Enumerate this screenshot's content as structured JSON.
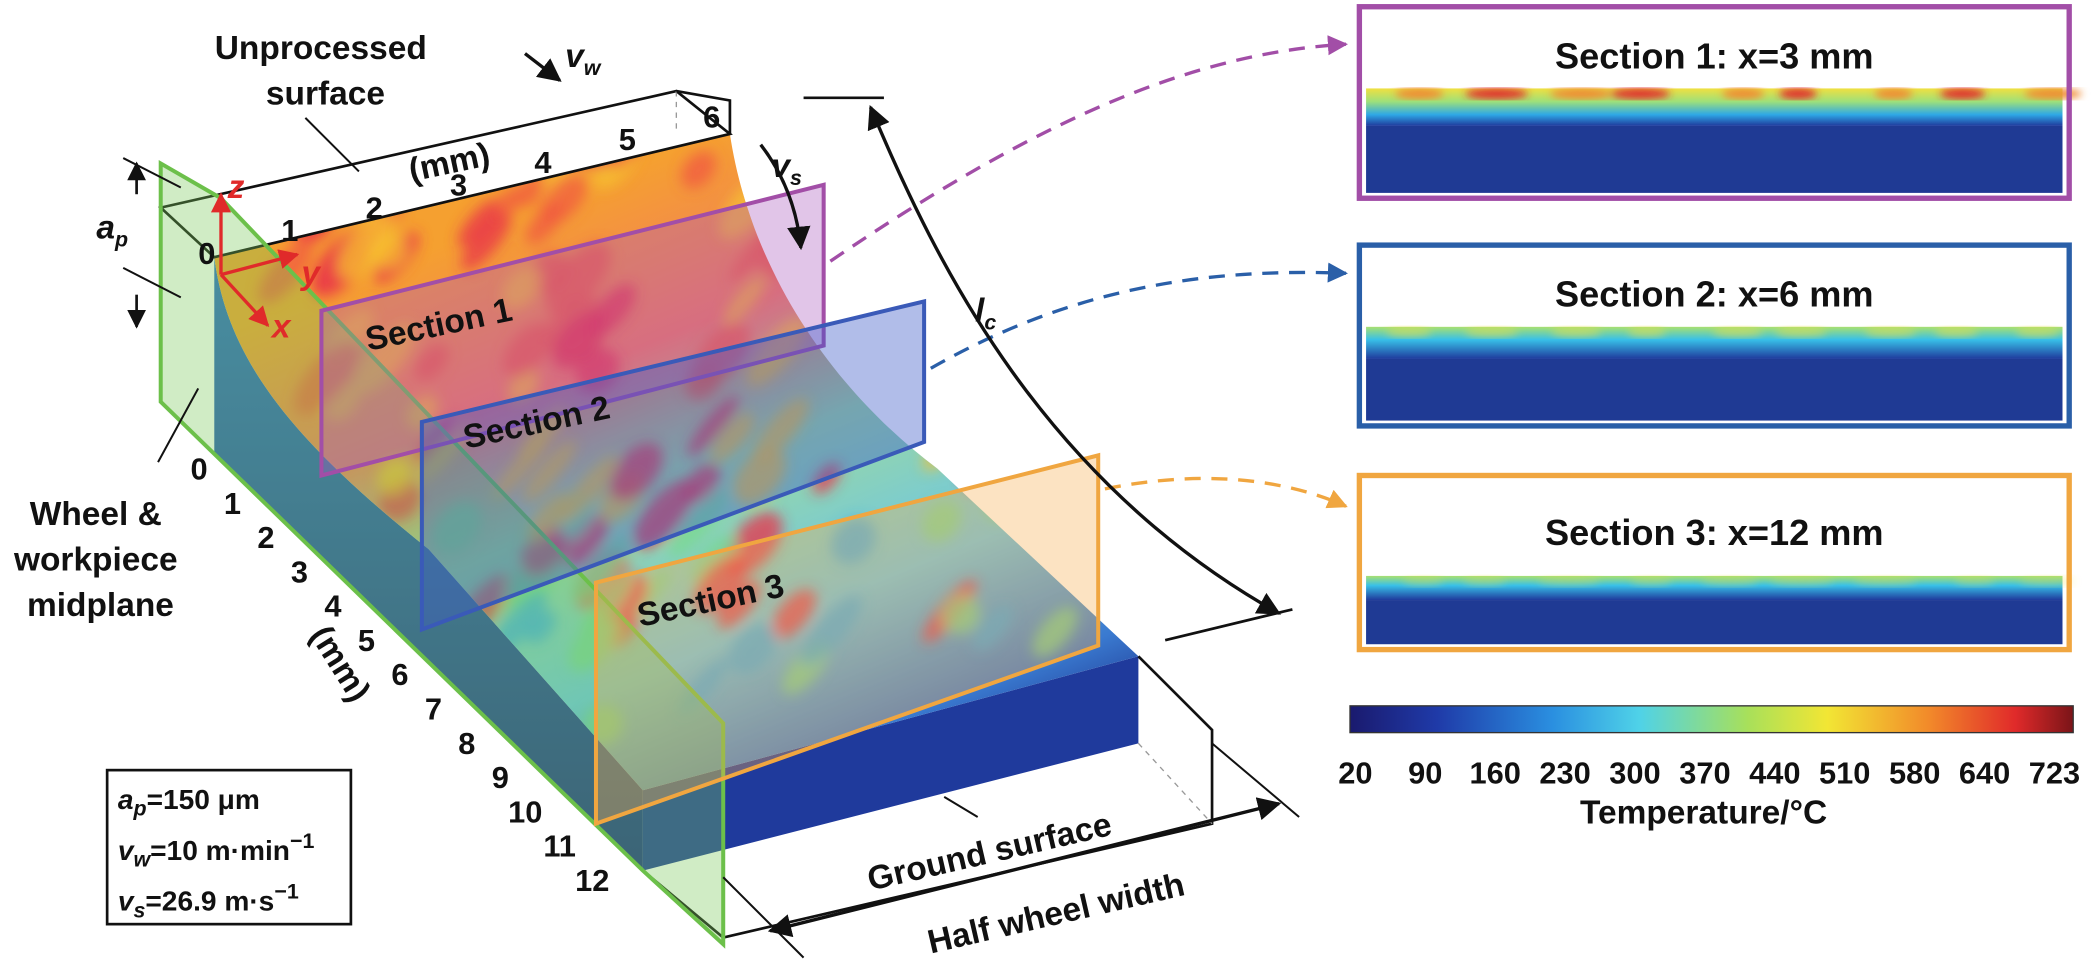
{
  "figure": {
    "labels": {
      "unprocessed": [
        "Unprocessed",
        "surface"
      ],
      "ground": "Ground surface",
      "half_wheel_width": "Half wheel width",
      "midplane": [
        "Wheel &",
        "workpiece",
        "midplane"
      ],
      "lc": {
        "main": "l",
        "sub": "c"
      },
      "ap": {
        "main": "a",
        "sub": "p"
      },
      "vw": {
        "main": "v",
        "sub": "w"
      },
      "vs": {
        "main": "v",
        "sub": "s"
      }
    },
    "axes": {
      "x": "x",
      "y": "y",
      "z": "z",
      "origin": "0"
    },
    "y_ticks": [
      "1",
      "2",
      "3",
      "4",
      "5",
      "6"
    ],
    "y_unit": "(mm)",
    "x_ticks": [
      "0",
      "1",
      "2",
      "3",
      "4",
      "5",
      "6",
      "7",
      "8",
      "9",
      "10",
      "11",
      "12"
    ],
    "x_unit": "(mm)",
    "sections": [
      {
        "label": "Section 1",
        "title": "Section 1: x=3 mm"
      },
      {
        "label": "Section 2",
        "title": "Section 2: x=6 mm"
      },
      {
        "label": "Section 3",
        "title": "Section 3: x=12 mm"
      }
    ],
    "parameters": [
      {
        "symbol": "a",
        "sub": "p",
        "value": "=150 μm"
      },
      {
        "symbol": "v",
        "sub": "w",
        "value": "=10 m·min",
        "sup": "−1"
      },
      {
        "symbol": "v",
        "sub": "s",
        "value": "=26.9 m·s",
        "sup": "−1"
      }
    ],
    "colorbar": {
      "ticks": [
        "20",
        "90",
        "160",
        "230",
        "300",
        "370",
        "440",
        "510",
        "580",
        "640",
        "723"
      ],
      "title": "Temperature/°C"
    }
  }
}
